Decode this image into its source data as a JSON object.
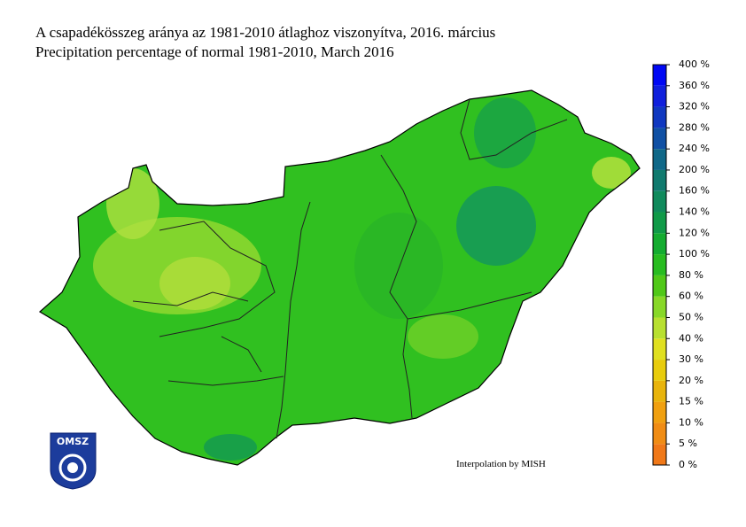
{
  "header": {
    "title": "A csapadékösszeg aránya az 1981-2010 átlaghoz viszonyítva, 2016. március",
    "subtitle": "Precipitation percentage of normal 1981-2010, March 2016"
  },
  "legend": {
    "labels": [
      "0 %",
      "5 %",
      "10 %",
      "15 %",
      "20 %",
      "30 %",
      "40 %",
      "50 %",
      "60 %",
      "80 %",
      "100 %",
      "120 %",
      "140 %",
      "160 %",
      "200 %",
      "240 %",
      "280 %",
      "320 %",
      "360 %",
      "400 %"
    ],
    "colors": [
      "#f07818",
      "#f08c14",
      "#f0a010",
      "#e8b40c",
      "#e8cc0c",
      "#e0e020",
      "#b8e030",
      "#88d828",
      "#50c818",
      "#28bc20",
      "#14ac30",
      "#109a48",
      "#108a5c",
      "#107a6e",
      "#106888",
      "#1050a4",
      "#1038c0",
      "#1020dc",
      "#0008f4"
    ]
  },
  "credit": "Interpolation by MISH",
  "logo": "OMSZ"
}
